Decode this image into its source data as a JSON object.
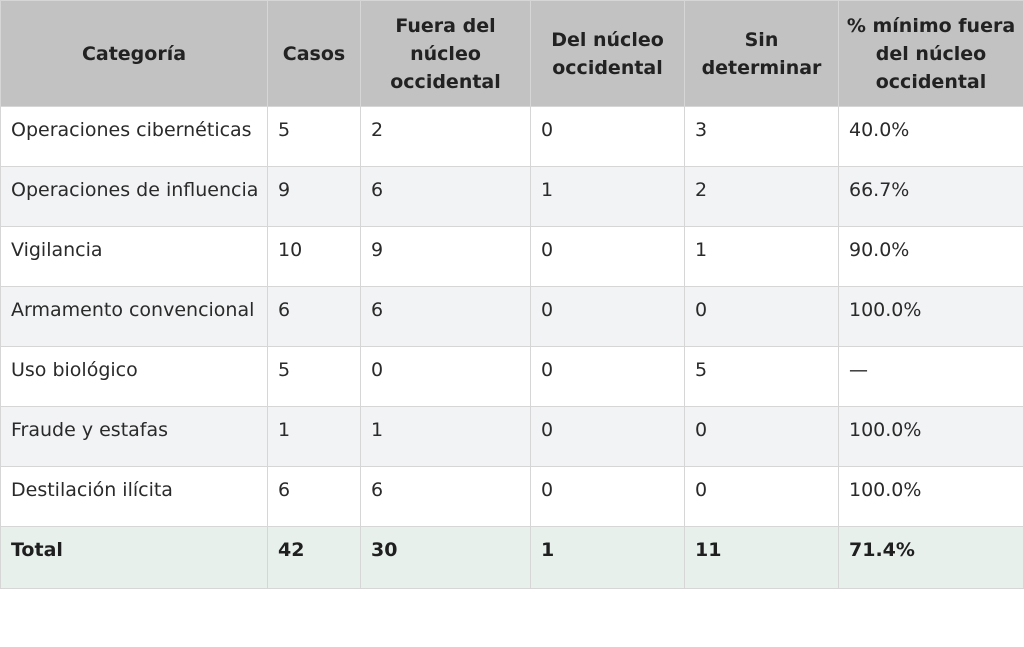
{
  "table": {
    "headers": [
      "Categoría",
      "Casos",
      "Fuera del núcleo occidental",
      "Del núcleo occidental",
      "Sin determinar",
      "% mínimo fuera del núcleo occidental"
    ],
    "rows": [
      [
        "Operaciones cibernéticas",
        "5",
        "2",
        "0",
        "3",
        "40.0%"
      ],
      [
        "Operaciones de influencia",
        "9",
        "6",
        "1",
        "2",
        "66.7%"
      ],
      [
        "Vigilancia",
        "10",
        "9",
        "0",
        "1",
        "90.0%"
      ],
      [
        "Armamento convencional",
        "6",
        "6",
        "0",
        "0",
        "100.0%"
      ],
      [
        "Uso biológico",
        "5",
        "0",
        "0",
        "5",
        "—"
      ],
      [
        "Fraude y estafas",
        "1",
        "1",
        "0",
        "0",
        "100.0%"
      ],
      [
        "Destilación ilícita",
        "6",
        "6",
        "0",
        "0",
        "100.0%"
      ]
    ],
    "total": [
      "Total",
      "42",
      "30",
      "1",
      "11",
      "71.4%"
    ]
  }
}
